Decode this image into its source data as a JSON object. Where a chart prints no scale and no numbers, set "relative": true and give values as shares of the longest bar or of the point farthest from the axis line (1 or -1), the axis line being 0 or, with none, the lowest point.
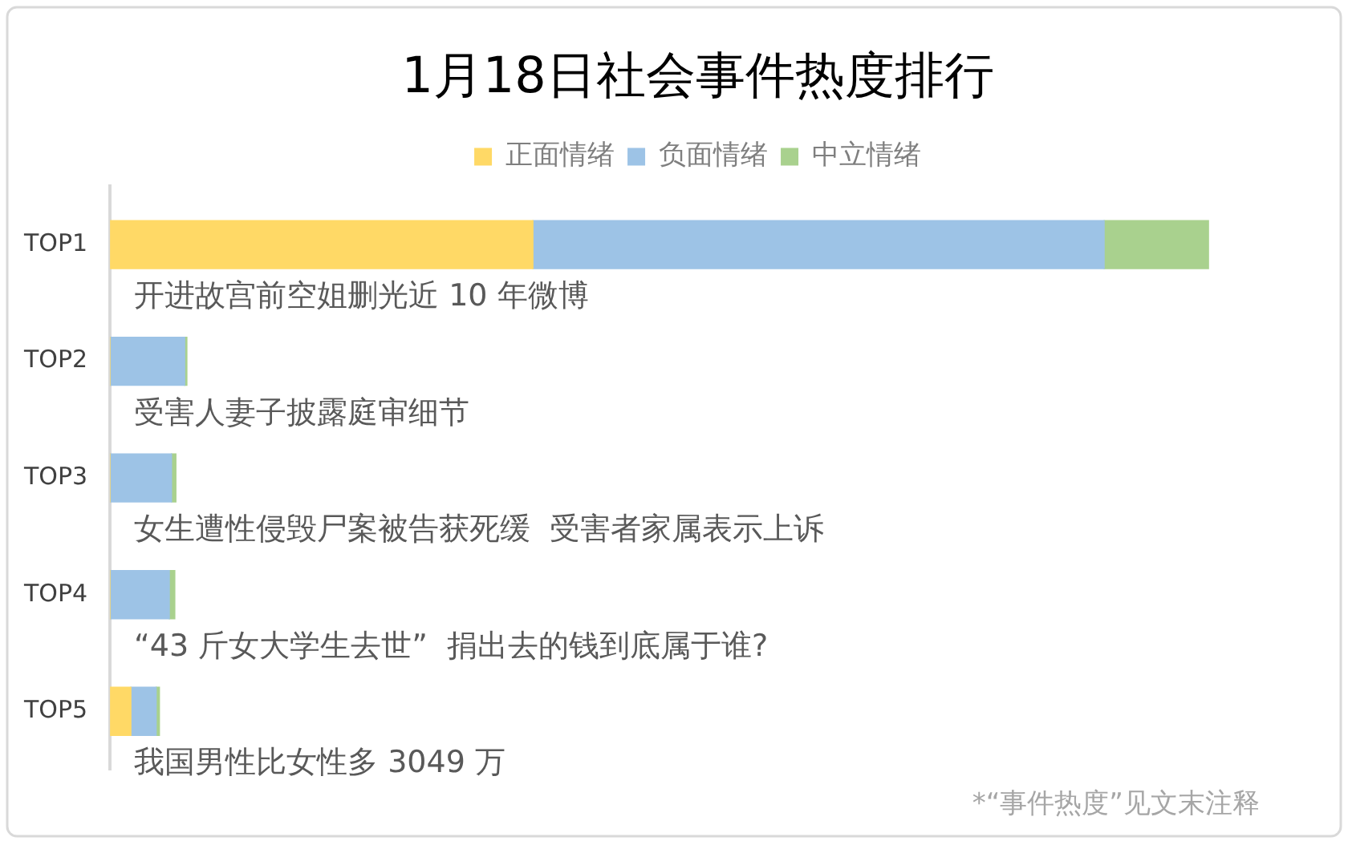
{
  "chart_data": {
    "type": "bar",
    "title": "1月18日社会事件热度排行",
    "orientation": "horizontal",
    "stacked": true,
    "relative": true,
    "legend": "top",
    "grid": false,
    "categories": [
      "TOP1",
      "TOP2",
      "TOP3",
      "TOP4",
      "TOP5"
    ],
    "series": [
      {
        "name": "正面情绪",
        "color": "#ffd966",
        "values": [
          0.385,
          0,
          0,
          0,
          0.019
        ]
      },
      {
        "name": "负面情绪",
        "color": "#9dc3e6",
        "values": [
          0.52,
          0.068,
          0.056,
          0.054,
          0.023
        ]
      },
      {
        "name": "中立情绪",
        "color": "#a9d18e",
        "values": [
          0.095,
          0.002,
          0.004,
          0.005,
          0.003
        ]
      }
    ],
    "annotations": [
      "开进故宫前空姐删光近 10 年微博",
      "受害人妻子披露庭审细节",
      "女生遭性侵毁尸案被告获死缓  受害者家属表示上诉",
      "“43 斤女大学生去世”  捐出去的钱到底属于谁?",
      "我国男性比女性多 3049 万",
      "*“事件热度”见文末注释"
    ]
  }
}
